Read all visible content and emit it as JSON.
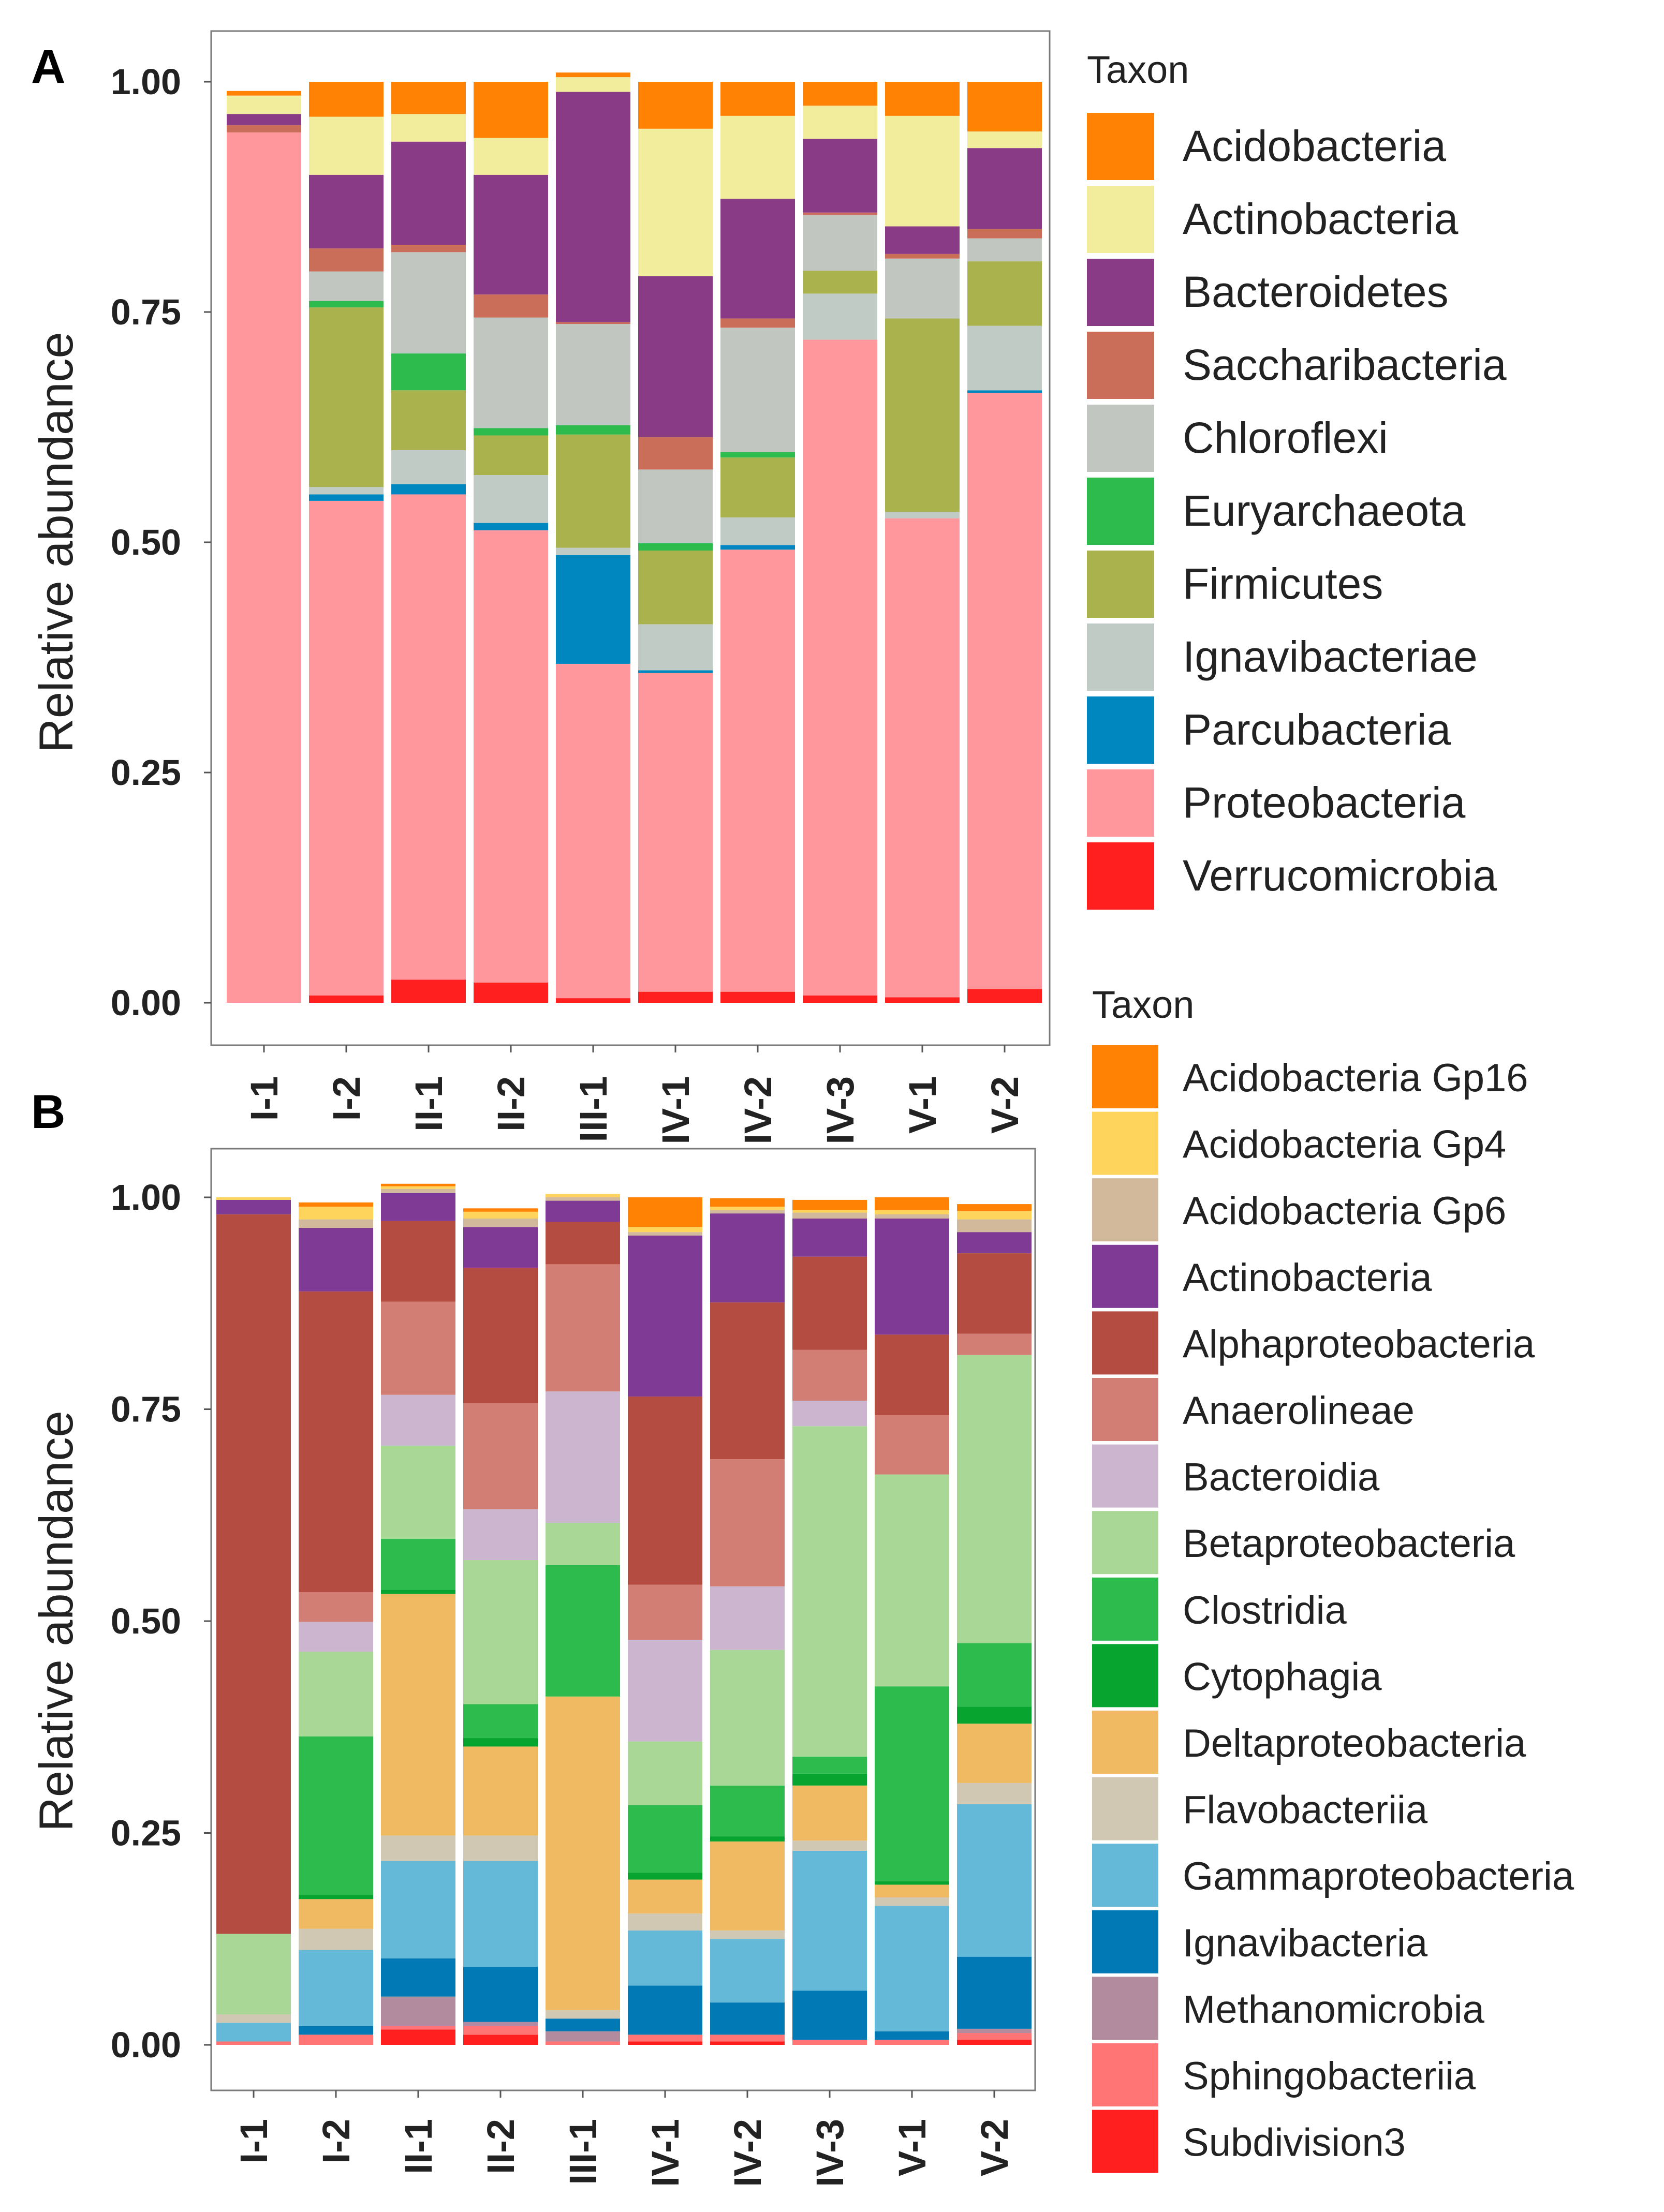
{
  "chart_data": [
    {
      "panel": "A",
      "type": "bar",
      "stacked": true,
      "ylabel": "Relative abundance",
      "xlabel": "",
      "ylim": [
        0,
        1.05
      ],
      "yticks": [
        "0.00",
        "0.25",
        "0.50",
        "0.75",
        "1.00"
      ],
      "categories": [
        "I-1",
        "I-2",
        "II-1",
        "II-2",
        "III-1",
        "IV-1",
        "IV-2",
        "IV-3",
        "V-1",
        "V-2"
      ],
      "legend_title": "Taxon",
      "legend_position": "right",
      "series": [
        {
          "name": "Verrucomicrobia",
          "color": "#FF1F1F",
          "values": [
            0.0,
            0.008,
            0.025,
            0.022,
            0.005,
            0.012,
            0.012,
            0.008,
            0.006,
            0.015
          ]
        },
        {
          "name": "Proteobacteria",
          "color": "#FF979D",
          "values": [
            0.945,
            0.537,
            0.527,
            0.491,
            0.363,
            0.346,
            0.48,
            0.712,
            0.52,
            0.647
          ]
        },
        {
          "name": "Parcubacteria",
          "color": "#0087C0",
          "values": [
            0.0,
            0.007,
            0.011,
            0.008,
            0.118,
            0.003,
            0.005,
            0.0,
            0.0,
            0.003
          ]
        },
        {
          "name": "Ignavibacteriae",
          "color": "#BFCBC4",
          "values": [
            0.0,
            0.008,
            0.037,
            0.052,
            0.008,
            0.05,
            0.03,
            0.05,
            0.007,
            0.07
          ]
        },
        {
          "name": "Firmicutes",
          "color": "#A9B24C",
          "values": [
            0.0,
            0.195,
            0.065,
            0.043,
            0.123,
            0.08,
            0.065,
            0.025,
            0.21,
            0.07
          ]
        },
        {
          "name": "Euryarchaeota",
          "color": "#2DBB4E",
          "values": [
            0.0,
            0.007,
            0.04,
            0.008,
            0.01,
            0.008,
            0.006,
            0.0,
            0.0,
            0.0
          ]
        },
        {
          "name": "Chloroflexi",
          "color": "#C2C6C0",
          "values": [
            0.0,
            0.032,
            0.11,
            0.12,
            0.11,
            0.08,
            0.135,
            0.06,
            0.065,
            0.025
          ]
        },
        {
          "name": "Saccharibacteria",
          "color": "#CA6E59",
          "values": [
            0.008,
            0.025,
            0.008,
            0.025,
            0.002,
            0.035,
            0.01,
            0.003,
            0.005,
            0.01
          ]
        },
        {
          "name": "Bacteroidetes",
          "color": "#8A3B86",
          "values": [
            0.012,
            0.08,
            0.112,
            0.13,
            0.25,
            0.175,
            0.13,
            0.08,
            0.03,
            0.088
          ]
        },
        {
          "name": "Actinobacteria",
          "color": "#F2EC9D",
          "values": [
            0.02,
            0.063,
            0.03,
            0.04,
            0.016,
            0.16,
            0.09,
            0.036,
            0.12,
            0.018
          ]
        },
        {
          "name": "Acidobacteria",
          "color": "#FF8204",
          "values": [
            0.005,
            0.038,
            0.035,
            0.061,
            0.005,
            0.051,
            0.037,
            0.026,
            0.037,
            0.054
          ]
        }
      ]
    },
    {
      "panel": "B",
      "type": "bar",
      "stacked": true,
      "ylabel": "Relative abundance",
      "xlabel": "",
      "ylim": [
        0,
        1.05
      ],
      "yticks": [
        "0.00",
        "0.25",
        "0.50",
        "0.75",
        "1.00"
      ],
      "categories": [
        "I-1",
        "I-2",
        "II-1",
        "II-2",
        "III-1",
        "IV-1",
        "IV-2",
        "IV-3",
        "V-1",
        "V-2"
      ],
      "legend_title": "Taxon",
      "legend_position": "right",
      "series": [
        {
          "name": "Subdivision3",
          "color": "#FF1F1F",
          "values": [
            0.0,
            0.0,
            0.018,
            0.012,
            0.0,
            0.004,
            0.004,
            0.0,
            0.0,
            0.006
          ]
        },
        {
          "name": "Sphingobacteriia",
          "color": "#FF7474",
          "values": [
            0.004,
            0.012,
            0.004,
            0.01,
            0.004,
            0.008,
            0.008,
            0.006,
            0.006,
            0.008
          ]
        },
        {
          "name": "Methanomicrobia",
          "color": "#B38B9E",
          "values": [
            0.0,
            0.0,
            0.035,
            0.005,
            0.012,
            0.0,
            0.0,
            0.0,
            0.0,
            0.005
          ]
        },
        {
          "name": "Ignavibacteria",
          "color": "#0079B5",
          "values": [
            0.0,
            0.01,
            0.045,
            0.065,
            0.015,
            0.058,
            0.038,
            0.058,
            0.01,
            0.085
          ]
        },
        {
          "name": "Gammaproteobacteria",
          "color": "#64B8D8",
          "values": [
            0.022,
            0.09,
            0.115,
            0.125,
            0.0,
            0.065,
            0.075,
            0.165,
            0.148,
            0.18
          ]
        },
        {
          "name": "Flavobacteriia",
          "color": "#D0C8B3",
          "values": [
            0.01,
            0.025,
            0.03,
            0.03,
            0.01,
            0.02,
            0.01,
            0.012,
            0.01,
            0.025
          ]
        },
        {
          "name": "Deltaproteobacteria",
          "color": "#F0BA62",
          "values": [
            0.0,
            0.035,
            0.285,
            0.105,
            0.37,
            0.04,
            0.105,
            0.065,
            0.015,
            0.07
          ]
        },
        {
          "name": "Cytophagia",
          "color": "#07A530",
          "values": [
            0.0,
            0.005,
            0.005,
            0.01,
            0.0,
            0.008,
            0.006,
            0.014,
            0.004,
            0.02
          ]
        },
        {
          "name": "Clostridia",
          "color": "#2DBB4E",
          "values": [
            0.0,
            0.187,
            0.06,
            0.04,
            0.155,
            0.08,
            0.06,
            0.02,
            0.23,
            0.075
          ]
        },
        {
          "name": "Betaproteobacteria",
          "color": "#A9D795",
          "values": [
            0.095,
            0.1,
            0.11,
            0.17,
            0.05,
            0.075,
            0.16,
            0.39,
            0.25,
            0.34
          ]
        },
        {
          "name": "Bacteroidia",
          "color": "#CCB6CF",
          "values": [
            0.0,
            0.035,
            0.06,
            0.06,
            0.155,
            0.12,
            0.075,
            0.03,
            0.0,
            0.0
          ]
        },
        {
          "name": "Anaerolineae",
          "color": "#D27E74",
          "values": [
            0.0,
            0.035,
            0.11,
            0.125,
            0.15,
            0.065,
            0.15,
            0.06,
            0.07,
            0.025
          ]
        },
        {
          "name": "Alphaproteobacteria",
          "color": "#B44C41",
          "values": [
            0.849,
            0.355,
            0.095,
            0.16,
            0.05,
            0.222,
            0.185,
            0.11,
            0.095,
            0.095
          ]
        },
        {
          "name": "Actinobacteria",
          "color": "#7E3A95",
          "values": [
            0.017,
            0.075,
            0.033,
            0.048,
            0.025,
            0.19,
            0.105,
            0.045,
            0.137,
            0.025
          ]
        },
        {
          "name": "Acidobacteria Gp6",
          "color": "#D2B99B",
          "values": [
            0.0,
            0.01,
            0.005,
            0.01,
            0.004,
            0.004,
            0.004,
            0.007,
            0.005,
            0.015
          ]
        },
        {
          "name": "Acidobacteria Gp4",
          "color": "#FFD45C",
          "values": [
            0.003,
            0.015,
            0.003,
            0.008,
            0.004,
            0.006,
            0.004,
            0.003,
            0.005,
            0.01
          ]
        },
        {
          "name": "Acidobacteria Gp16",
          "color": "#FF8204",
          "values": [
            0.0,
            0.005,
            0.003,
            0.004,
            0.0,
            0.035,
            0.01,
            0.012,
            0.015,
            0.008
          ]
        }
      ]
    }
  ]
}
